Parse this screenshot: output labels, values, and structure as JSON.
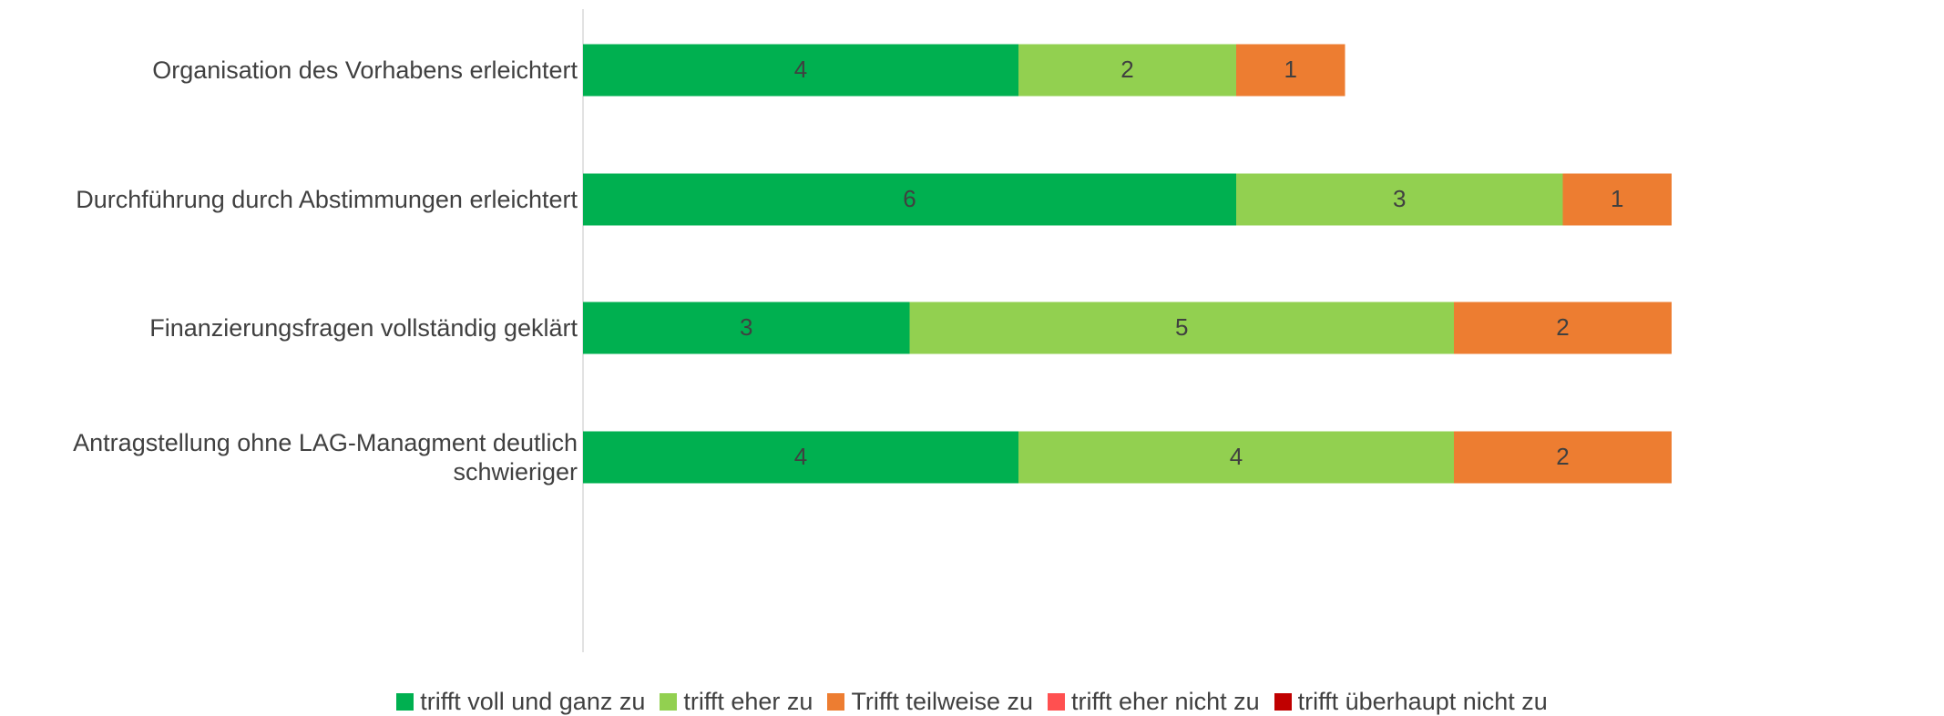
{
  "chart_data": {
    "type": "bar",
    "orientation": "horizontal",
    "stacked": true,
    "categories": [
      "Organisation des Vorhabens erleichtert",
      "Durchführung durch Abstimmungen erleichtert",
      "Finanzierungsfragen vollständig geklärt",
      "Antragstellung ohne LAG-Managment deutlich schwieriger"
    ],
    "series": [
      {
        "name": "trifft voll und ganz zu",
        "color": "#00b050",
        "values": [
          4,
          6,
          3,
          4
        ]
      },
      {
        "name": "trifft eher zu",
        "color": "#92d050",
        "values": [
          2,
          3,
          5,
          4
        ]
      },
      {
        "name": "Trifft teilweise zu",
        "color": "#ed7d31",
        "values": [
          1,
          1,
          2,
          2
        ]
      },
      {
        "name": "trifft eher nicht zu",
        "color": "#ff5050",
        "values": [
          0,
          0,
          0,
          0
        ]
      },
      {
        "name": "trifft überhaupt nicht zu",
        "color": "#c00000",
        "values": [
          0,
          0,
          0,
          0
        ]
      }
    ],
    "data_labels": true,
    "legend_position": "bottom",
    "grid": false
  }
}
